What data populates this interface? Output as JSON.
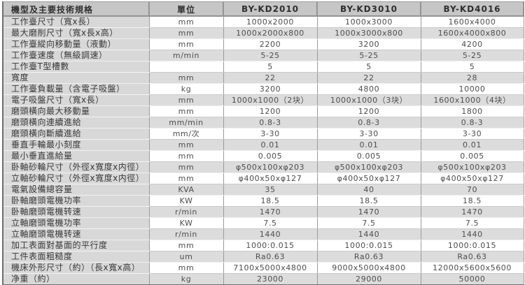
{
  "table": {
    "header": {
      "spec_column_label": "機型及主要技術規格",
      "unit_column_label": "單位",
      "model_columns": [
        "BY-KD2010",
        "BY-KD3010",
        "BY-KD4016"
      ]
    },
    "rows": [
      {
        "label": "工作臺尺寸（寬x長）",
        "unit": "mm",
        "values": [
          "1000x2000",
          "1000x3000",
          "1600x4000"
        ]
      },
      {
        "label": "最大磨削尺寸（寬x長x高）",
        "unit": "mm",
        "values": [
          "1000x2000x800",
          "1000x3000x800",
          "1600x4000x800"
        ]
      },
      {
        "label": "工作臺縱向移動量（液動）",
        "unit": "mm",
        "values": [
          "2200",
          "3200",
          "4200"
        ]
      },
      {
        "label": "工作臺速度（無級調速）",
        "unit": "m/min",
        "values": [
          "5-25",
          "5-25",
          "5-25"
        ]
      },
      {
        "label": "工作臺T型槽數",
        "unit": "",
        "values": [
          "5",
          "5",
          "5"
        ]
      },
      {
        "label": "寬度",
        "unit": "mm",
        "values": [
          "22",
          "22",
          "28"
        ]
      },
      {
        "label": "工作臺負載量（含電子吸盤）",
        "unit": "kg",
        "values": [
          "3200",
          "4800",
          "10000"
        ]
      },
      {
        "label": "電子吸盤尺寸（寬x長）",
        "unit": "mm",
        "values": [
          "1000x1000（2块）",
          "1000x1000（3块）",
          "1600x1000（4块）"
        ]
      },
      {
        "label": "磨頭橫向最大移動量",
        "unit": "mm",
        "values": [
          "1200",
          "1200",
          "1800"
        ]
      },
      {
        "label": "磨頭橫向連續進給",
        "unit": "mm/min",
        "values": [
          "0.8-3",
          "0.8-3",
          "0.8-3"
        ]
      },
      {
        "label": "磨頭橫向斷續進給",
        "unit": "mm/次",
        "values": [
          "3-30",
          "3-30",
          "3-30"
        ]
      },
      {
        "label": "垂直手輪最小刻度",
        "unit": "mm",
        "values": [
          "0.01",
          "0.01",
          "0.01"
        ]
      },
      {
        "label": "最小垂直進給量",
        "unit": "mm",
        "values": [
          "0.005",
          "0.005",
          "0.005"
        ]
      },
      {
        "label": "卧軸砂輪尺寸（外徑x寬度x内徑）",
        "unit": "mm",
        "values": [
          "φ500x100xφ203",
          "φ500x100xφ203",
          "φ500x100xφ203"
        ]
      },
      {
        "label": "立軸砂輪尺寸（外徑x寬度x内徑）",
        "unit": "mm",
        "values": [
          "φ400x50xφ127",
          "φ400x50xφ127",
          "φ400x50xφ127"
        ]
      },
      {
        "label": "電氣設備總容量",
        "unit": "KVA",
        "values": [
          "35",
          "40",
          "70"
        ]
      },
      {
        "label": "卧軸磨頭電機功率",
        "unit": "KW",
        "values": [
          "18.5",
          "18.5",
          "18.5"
        ]
      },
      {
        "label": "卧軸磨頭電機转速",
        "unit": "r/min",
        "values": [
          "1470",
          "1470",
          "1470"
        ]
      },
      {
        "label": "立軸磨頭電機功率",
        "unit": "KW",
        "values": [
          "7.5",
          "7.5",
          "7.5"
        ]
      },
      {
        "label": "立軸磨頭電機转速",
        "unit": "r/min",
        "values": [
          "1440",
          "1440",
          "1440"
        ]
      },
      {
        "label": "加工表面對基面的平行度",
        "unit": "mm",
        "values": [
          "1000:0.015",
          "1000:0.015",
          "1000:0.015"
        ]
      },
      {
        "label": "工件表面粗糙度",
        "unit": "um",
        "values": [
          "Ra0.63",
          "Ra0.63",
          "Ra0.63"
        ]
      },
      {
        "label": "機床外形尺寸（約）（長x寬x高）",
        "unit": "mm",
        "values": [
          "7100x5000x4800",
          "9000x5000x4800",
          "12000x5600x5600"
        ]
      },
      {
        "label": "净重（約）",
        "unit": "kg",
        "values": [
          "23000",
          "29000",
          "50000"
        ]
      }
    ],
    "colors": {
      "header_bg": "#c6c6c6",
      "label_column_bg": "#d8d8d8",
      "alt_row_bg": "#dcdcdc",
      "grid_line": "#9a9a9a"
    }
  }
}
